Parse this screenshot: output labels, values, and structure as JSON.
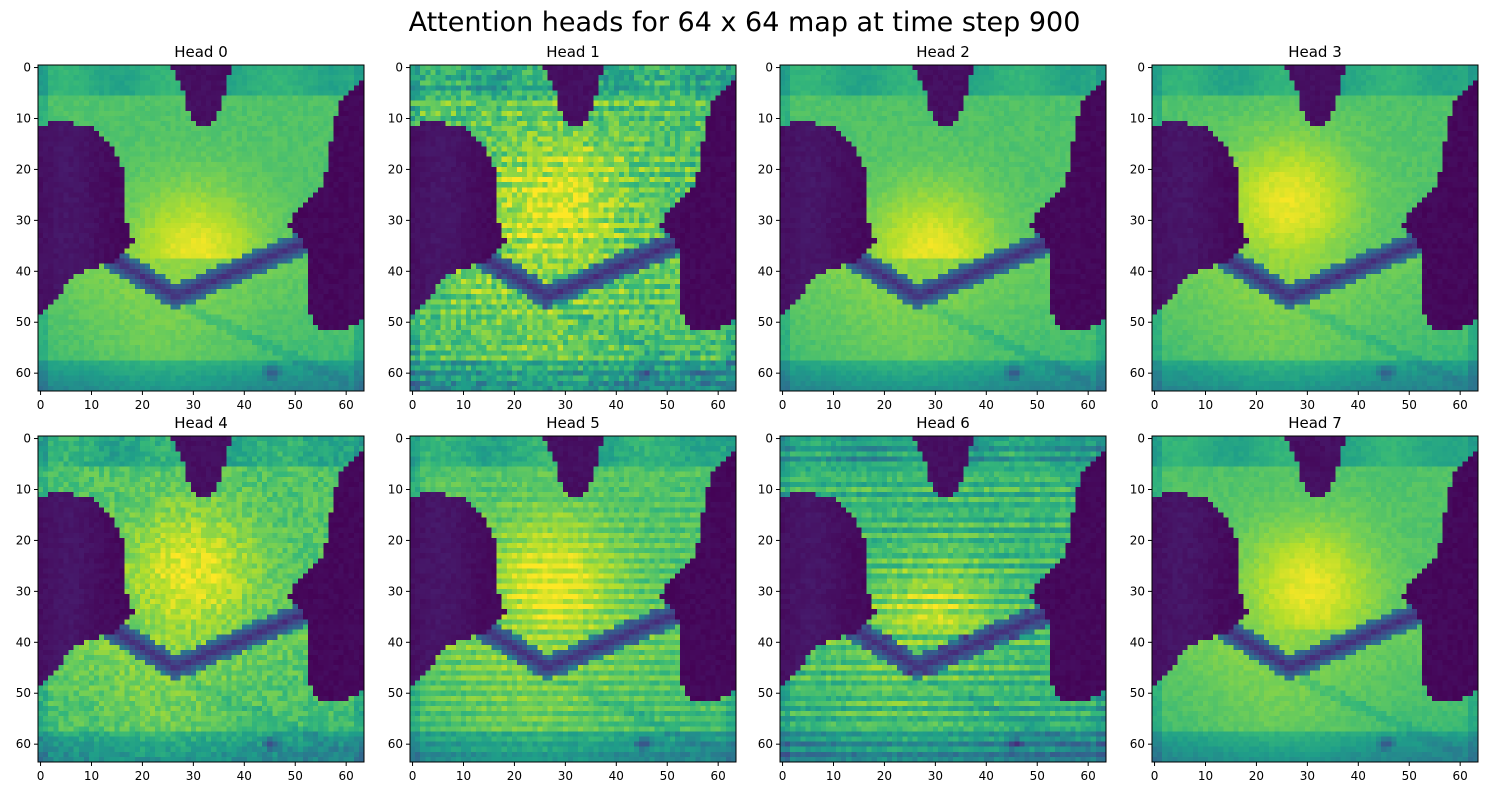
{
  "figure": {
    "title": "Attention heads for 64 x 64 map at time step 900"
  },
  "chart_data": [
    {
      "type": "heatmap",
      "title": "Head 0",
      "grid_size": [
        64,
        64
      ],
      "colormap": "viridis",
      "xlim": [
        0,
        63
      ],
      "ylim": [
        63,
        0
      ],
      "xticks": [
        0,
        10,
        20,
        30,
        40,
        50,
        60
      ],
      "yticks": [
        0,
        10,
        20,
        30,
        40,
        50,
        60
      ],
      "texture": "smooth",
      "center_peak": [
        31,
        37
      ]
    },
    {
      "type": "heatmap",
      "title": "Head 1",
      "grid_size": [
        64,
        64
      ],
      "colormap": "viridis",
      "xlim": [
        0,
        63
      ],
      "ylim": [
        63,
        0
      ],
      "xticks": [
        0,
        10,
        20,
        30,
        40,
        50,
        60
      ],
      "yticks": [
        0,
        10,
        20,
        30,
        40,
        50,
        60
      ],
      "texture": "noisy-striped",
      "center_peak": [
        29,
        28
      ]
    },
    {
      "type": "heatmap",
      "title": "Head 2",
      "grid_size": [
        64,
        64
      ],
      "colormap": "viridis",
      "xlim": [
        0,
        63
      ],
      "ylim": [
        63,
        0
      ],
      "xticks": [
        0,
        10,
        20,
        30,
        40,
        50,
        60
      ],
      "yticks": [
        0,
        10,
        20,
        30,
        40,
        50,
        60
      ],
      "texture": "smooth",
      "center_peak": [
        30,
        37
      ]
    },
    {
      "type": "heatmap",
      "title": "Head 3",
      "grid_size": [
        64,
        64
      ],
      "colormap": "viridis",
      "xlim": [
        0,
        63
      ],
      "ylim": [
        63,
        0
      ],
      "xticks": [
        0,
        10,
        20,
        30,
        40,
        50,
        60
      ],
      "yticks": [
        0,
        10,
        20,
        30,
        40,
        50,
        60
      ],
      "texture": "smooth",
      "center_peak": [
        27,
        27
      ]
    },
    {
      "type": "heatmap",
      "title": "Head 4",
      "grid_size": [
        64,
        64
      ],
      "colormap": "viridis",
      "xlim": [
        0,
        63
      ],
      "ylim": [
        63,
        0
      ],
      "xticks": [
        0,
        10,
        20,
        30,
        40,
        50,
        60
      ],
      "yticks": [
        0,
        10,
        20,
        30,
        40,
        50,
        60
      ],
      "texture": "speckled",
      "center_peak": [
        30,
        27
      ]
    },
    {
      "type": "heatmap",
      "title": "Head 5",
      "grid_size": [
        64,
        64
      ],
      "colormap": "viridis",
      "xlim": [
        0,
        63
      ],
      "ylim": [
        63,
        0
      ],
      "xticks": [
        0,
        10,
        20,
        30,
        40,
        50,
        60
      ],
      "yticks": [
        0,
        10,
        20,
        30,
        40,
        50,
        60
      ],
      "texture": "striped",
      "center_peak": [
        28,
        29
      ]
    },
    {
      "type": "heatmap",
      "title": "Head 6",
      "grid_size": [
        64,
        64
      ],
      "colormap": "viridis",
      "xlim": [
        0,
        63
      ],
      "ylim": [
        63,
        0
      ],
      "xticks": [
        0,
        10,
        20,
        30,
        40,
        50,
        60
      ],
      "yticks": [
        0,
        10,
        20,
        30,
        40,
        50,
        60
      ],
      "texture": "strongly-striped",
      "center_peak": [
        30,
        37
      ]
    },
    {
      "type": "heatmap",
      "title": "Head 7",
      "grid_size": [
        64,
        64
      ],
      "colormap": "viridis",
      "xlim": [
        0,
        63
      ],
      "ylim": [
        63,
        0
      ],
      "xticks": [
        0,
        10,
        20,
        30,
        40,
        50,
        60
      ],
      "yticks": [
        0,
        10,
        20,
        30,
        40,
        50,
        60
      ],
      "texture": "smooth",
      "center_peak": [
        31,
        30
      ]
    }
  ]
}
